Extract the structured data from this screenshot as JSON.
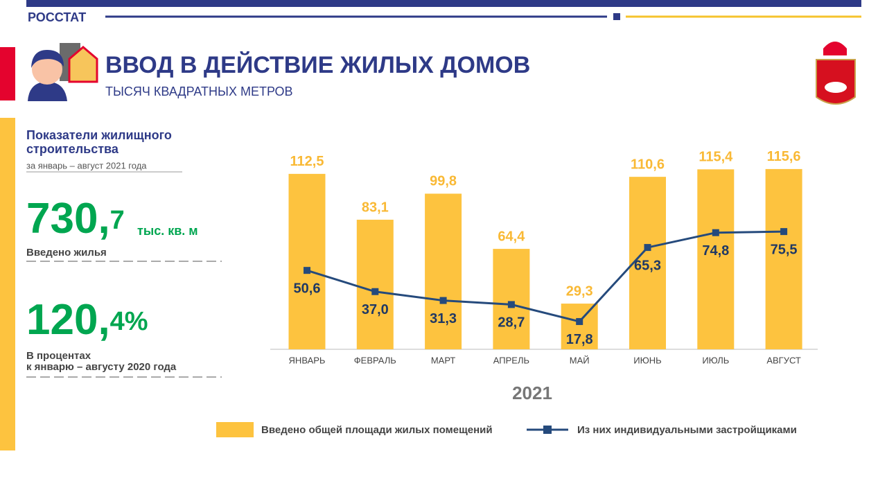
{
  "header": {
    "org": "РОССТАТ",
    "title": "ВВОД В ДЕЙСТВИЕ ЖИЛЫХ ДОМОВ",
    "subtitle": "ТЫСЯЧ КВАДРАТНЫХ  МЕТРОВ"
  },
  "summary": {
    "heading": "Показатели жилищного строительства",
    "period": "за январь – август 2021 года",
    "total": {
      "main": "730,",
      "fraction": "7",
      "unit": "тыс. кв. м",
      "caption": "Введено жилья"
    },
    "percent": {
      "main": "120,",
      "fraction": "4%",
      "caption_line1": "В процентах",
      "caption_line2": "к январю –  августу 2020 года"
    }
  },
  "chart_data": {
    "type": "bar-line",
    "x_label": "2021",
    "categories": [
      "ЯНВАРЬ",
      "ФЕВРАЛЬ",
      "МАРТ",
      "АПРЕЛЬ",
      "МАЙ",
      "ИЮНЬ",
      "ИЮЛЬ",
      "АВГУСТ"
    ],
    "series": [
      {
        "name": "Введено общей площади жилых помещений",
        "type": "bar",
        "color": "#fdc33f",
        "label_color": "#f9b935",
        "values": [
          112.5,
          83.1,
          99.8,
          64.4,
          29.3,
          110.6,
          115.4,
          115.6
        ],
        "value_labels": [
          "112,5",
          "83,1",
          "99,8",
          "64,4",
          "29,3",
          "110,6",
          "115,4",
          "115,6"
        ]
      },
      {
        "name": "Из них индивидуальными застройщиками",
        "type": "line",
        "color": "#254a7c",
        "label_color": "#1f3864",
        "values": [
          50.6,
          37.0,
          31.3,
          28.7,
          17.8,
          65.3,
          74.8,
          75.5
        ],
        "value_labels": [
          "50,6",
          "37,0",
          "31,3",
          "28,7",
          "17,8",
          "65,3",
          "74,8",
          "75,5"
        ]
      }
    ]
  }
}
